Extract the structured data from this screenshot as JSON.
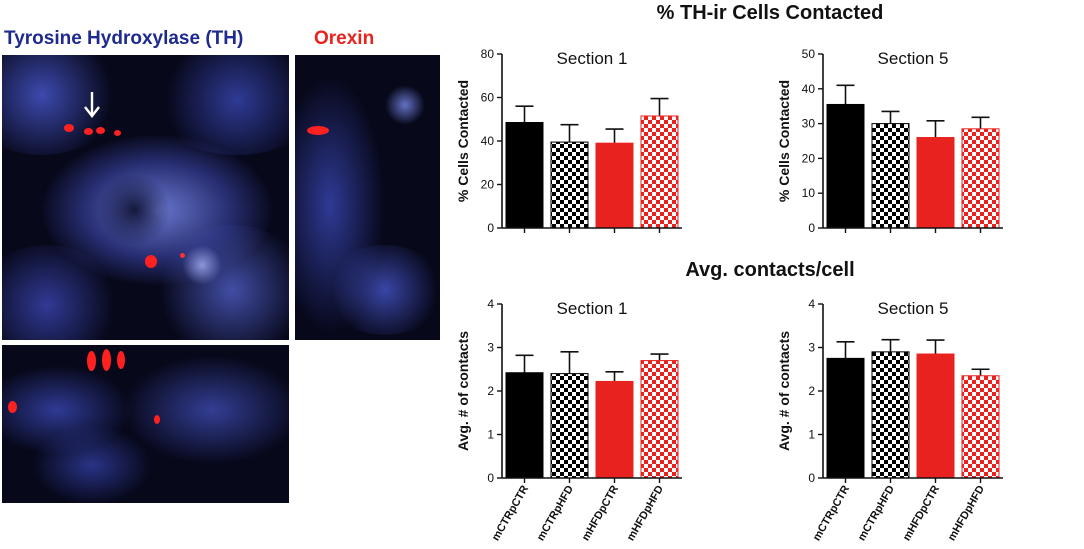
{
  "micrograph": {
    "th_label": "Tyrosine Hydroxylase (TH)",
    "orexin_label": "Orexin",
    "th_color": "#1f2a8f",
    "orexin_color": "#e8231f",
    "arrow_icon": "down-arrow-icon"
  },
  "headings": {
    "top": "% TH-ir Cells Contacted",
    "bottom": "Avg. contacts/cell"
  },
  "chart_data": [
    {
      "type": "bar",
      "title": "Section 1",
      "ylabel": "% Cells Contacted",
      "categories": [
        "mCTRpCTR",
        "mCTRpHFD",
        "mHFDpCTR",
        "mHFDpHFD"
      ],
      "values": [
        48.5,
        39.5,
        39,
        51.5
      ],
      "errors": [
        7.5,
        8,
        6.5,
        8
      ],
      "ylim": [
        0,
        80
      ],
      "yticks": [
        "0",
        "20",
        "40",
        "60",
        "80"
      ],
      "show_xlabels": false
    },
    {
      "type": "bar",
      "title": "Section 5",
      "ylabel": "% Cells Contacted",
      "categories": [
        "mCTRpCTR",
        "mCTRpHFD",
        "mHFDpCTR",
        "mHFDpHFD"
      ],
      "values": [
        35.5,
        30,
        26,
        28.5
      ],
      "errors": [
        5.5,
        3.5,
        4.8,
        3.3
      ],
      "ylim": [
        0,
        50
      ],
      "yticks": [
        "0",
        "10",
        "20",
        "30",
        "40",
        "50"
      ],
      "show_xlabels": false
    },
    {
      "type": "bar",
      "title": "Section 1",
      "ylabel": "Avg. # of contacts",
      "categories": [
        "mCTRpCTR",
        "mCTRpHFD",
        "mHFDpCTR",
        "mHFDpHFD"
      ],
      "values": [
        2.42,
        2.4,
        2.22,
        2.7
      ],
      "errors": [
        0.4,
        0.5,
        0.22,
        0.15
      ],
      "ylim": [
        0,
        4
      ],
      "yticks": [
        "0",
        "1",
        "2",
        "3",
        "4"
      ],
      "show_xlabels": true
    },
    {
      "type": "bar",
      "title": "Section 5",
      "ylabel": "Avg. # of contacts",
      "categories": [
        "mCTRpCTR",
        "mCTRpHFD",
        "mHFDpCTR",
        "mHFDpHFD"
      ],
      "values": [
        2.75,
        2.9,
        2.85,
        2.35
      ],
      "errors": [
        0.38,
        0.28,
        0.32,
        0.15
      ],
      "ylim": [
        0,
        4
      ],
      "yticks": [
        "0",
        "1",
        "2",
        "3",
        "4"
      ],
      "show_xlabels": true
    }
  ],
  "bar_styles": [
    {
      "fill": "#000000",
      "pattern": "solid"
    },
    {
      "fill": "#000000",
      "pattern": "checker"
    },
    {
      "fill": "#e8231f",
      "pattern": "solid"
    },
    {
      "fill": "#e8231f",
      "pattern": "checker"
    }
  ]
}
